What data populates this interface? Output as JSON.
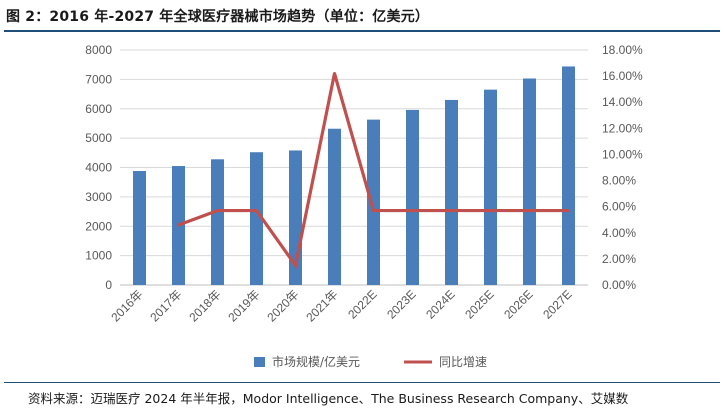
{
  "figure": {
    "title": "图 2：2016 年-2027 年全球医疗器械市场趋势（单位：亿美元）",
    "source": "资料来源：迈瑞医疗 2024 年半年报，Modor Intelligence、The Business Research Company、艾媒数"
  },
  "colors": {
    "bar": "#4a7ebb",
    "line": "#c0504d",
    "rule": "#1f4e79"
  },
  "chart_data": {
    "type": "bar",
    "categories": [
      "2016年",
      "2017年",
      "2018年",
      "2019年",
      "2020年",
      "2021年",
      "2022E",
      "2023E",
      "2024E",
      "2025E",
      "2026E",
      "2027E"
    ],
    "series": [
      {
        "name": "市场规模/亿美元",
        "type": "bar",
        "axis": "left",
        "values": [
          3880,
          4050,
          4280,
          4520,
          4580,
          5320,
          5630,
          5960,
          6300,
          6650,
          7030,
          7440
        ]
      },
      {
        "name": "同比增速",
        "type": "line",
        "axis": "right",
        "values": [
          null,
          4.6,
          5.7,
          5.7,
          1.5,
          16.2,
          5.7,
          5.7,
          5.7,
          5.7,
          5.7,
          5.7
        ]
      }
    ],
    "y_left": {
      "min": 0,
      "max": 8000,
      "ticks": [
        "0",
        "1000",
        "2000",
        "3000",
        "4000",
        "5000",
        "6000",
        "7000",
        "8000"
      ]
    },
    "y_right": {
      "min": 0,
      "max": 18,
      "ticks": [
        "0.00%",
        "2.00%",
        "4.00%",
        "6.00%",
        "8.00%",
        "10.00%",
        "12.00%",
        "14.00%",
        "16.00%",
        "18.00%"
      ]
    },
    "legend_position": "bottom",
    "grid": true
  }
}
